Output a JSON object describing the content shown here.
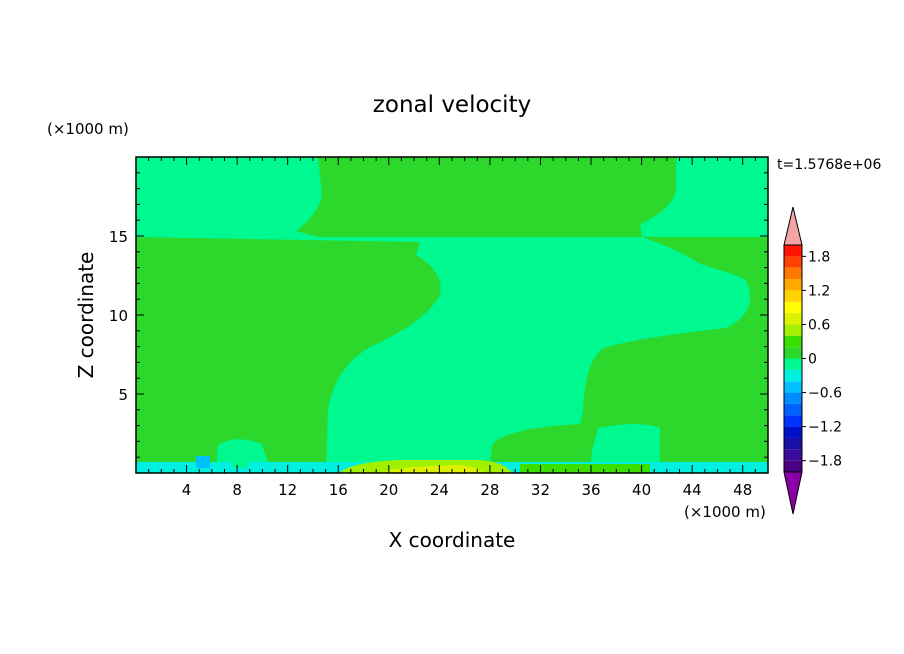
{
  "chart_data": {
    "type": "heatmap",
    "title": "zonal velocity",
    "xlabel": "X coordinate",
    "ylabel": "Z coordinate",
    "x_unit": "(×1000 m)",
    "y_unit": "(×1000 m)",
    "time_label": "t=1.5768e+06",
    "xlim": [
      0,
      50
    ],
    "ylim": [
      0,
      20
    ],
    "x_ticks": [
      4,
      8,
      12,
      16,
      20,
      24,
      28,
      32,
      36,
      40,
      44,
      48
    ],
    "y_ticks": [
      5,
      10,
      15
    ],
    "colorbar": {
      "levels": [
        -2.0,
        -1.8,
        -1.6,
        -1.4,
        -1.2,
        -1.0,
        -0.8,
        -0.6,
        -0.4,
        -0.2,
        0,
        0.2,
        0.4,
        0.6,
        0.8,
        1.0,
        1.2,
        1.4,
        1.6,
        1.8,
        2.0
      ],
      "colors": [
        "#4b0082",
        "#3a0a9a",
        "#1a10a8",
        "#0010c8",
        "#0032ff",
        "#0060ff",
        "#008cff",
        "#00c0ff",
        "#00f0e0",
        "#00f890",
        "#2cd82c",
        "#3ce000",
        "#a0f000",
        "#ddf000",
        "#ffff00",
        "#ffd200",
        "#ffa800",
        "#ff7800",
        "#ff4000",
        "#ff1400"
      ],
      "tick_values": [
        -1.8,
        -1.2,
        -0.6,
        0,
        0.6,
        1.2,
        1.8
      ],
      "tick_labels": [
        "−1.8",
        "−1.2",
        "−0.6",
        "0",
        "0.6",
        "1.2",
        "1.8"
      ],
      "under_color": "#8a00a8",
      "over_color": "#f4a4a4"
    }
  }
}
